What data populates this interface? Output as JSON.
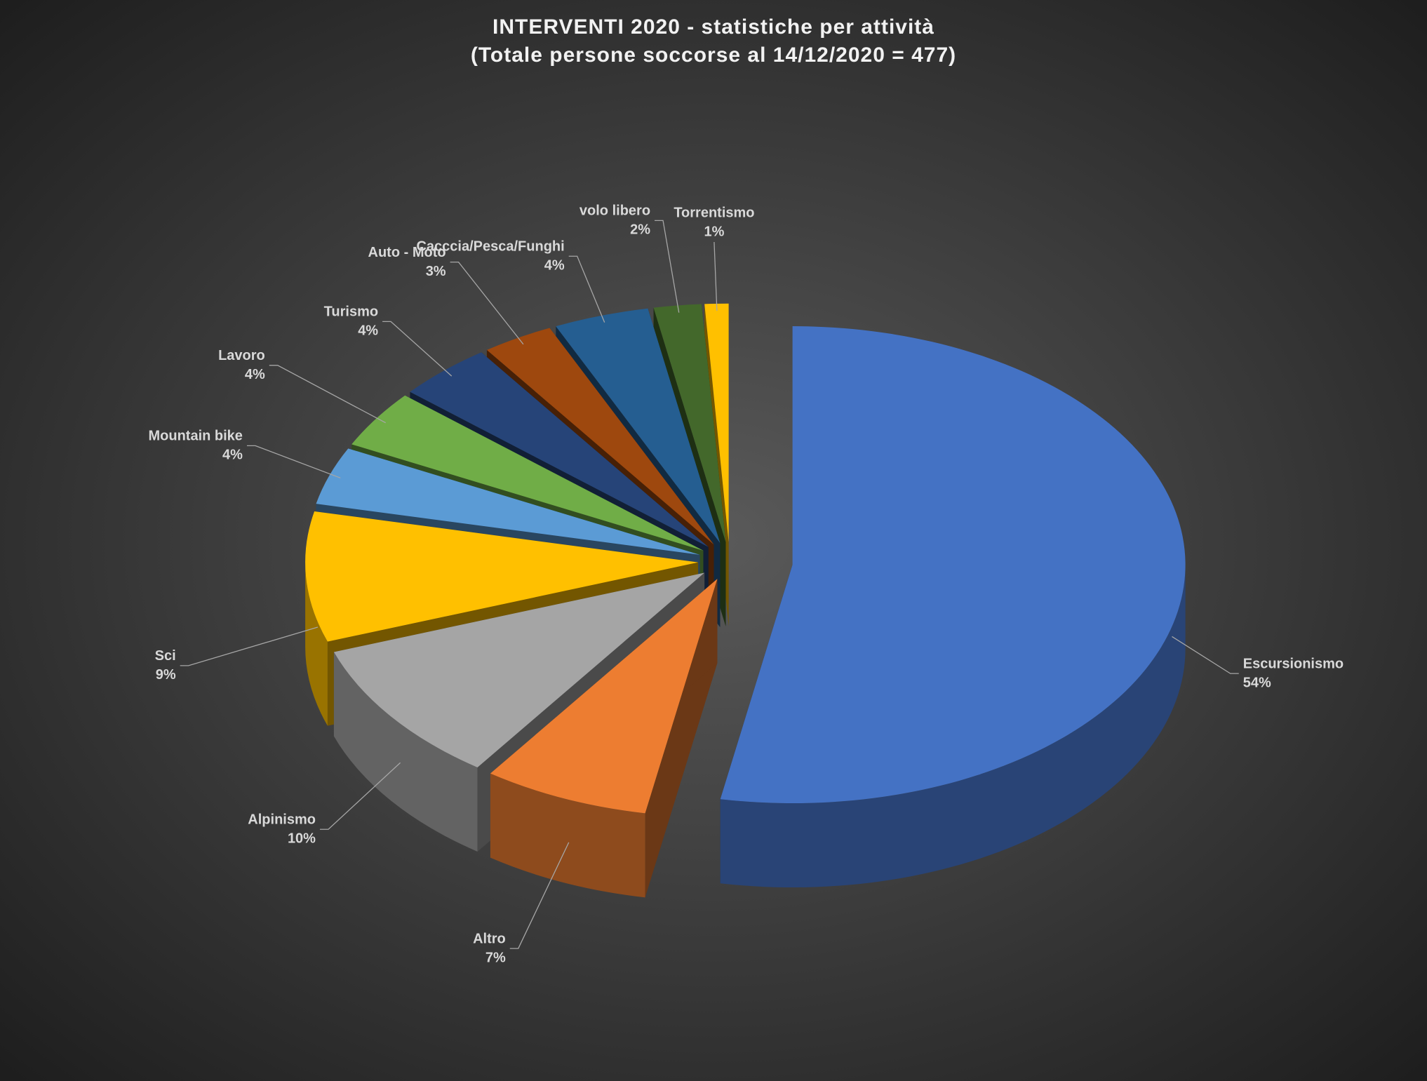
{
  "chart_data": {
    "type": "pie3d",
    "title": "INTERVENTI 2020 - statistiche per attività",
    "subtitle": "(Totale persone soccorse al 14/12/2020 = 477)",
    "categories": [
      "Escursionismo",
      "Altro",
      "Alpinismo",
      "Sci",
      "Mountain bike",
      "Lavoro",
      "Turismo",
      "Auto - Moto",
      "Cacccia/Pesca/Funghi",
      "volo libero",
      "Torrentismo"
    ],
    "values": [
      54,
      7,
      10,
      9,
      4,
      4,
      4,
      3,
      4,
      2,
      1
    ],
    "value_labels": [
      "54%",
      "7%",
      "10%",
      "9%",
      "4%",
      "4%",
      "4%",
      "3%",
      "4%",
      "2%",
      "1%"
    ],
    "colors": [
      "#4472c4",
      "#ed7d31",
      "#a5a5a5",
      "#ffc000",
      "#5b9bd5",
      "#70ad47",
      "#264478",
      "#9e480e",
      "#255e91",
      "#43682b",
      "#ffc000"
    ]
  }
}
